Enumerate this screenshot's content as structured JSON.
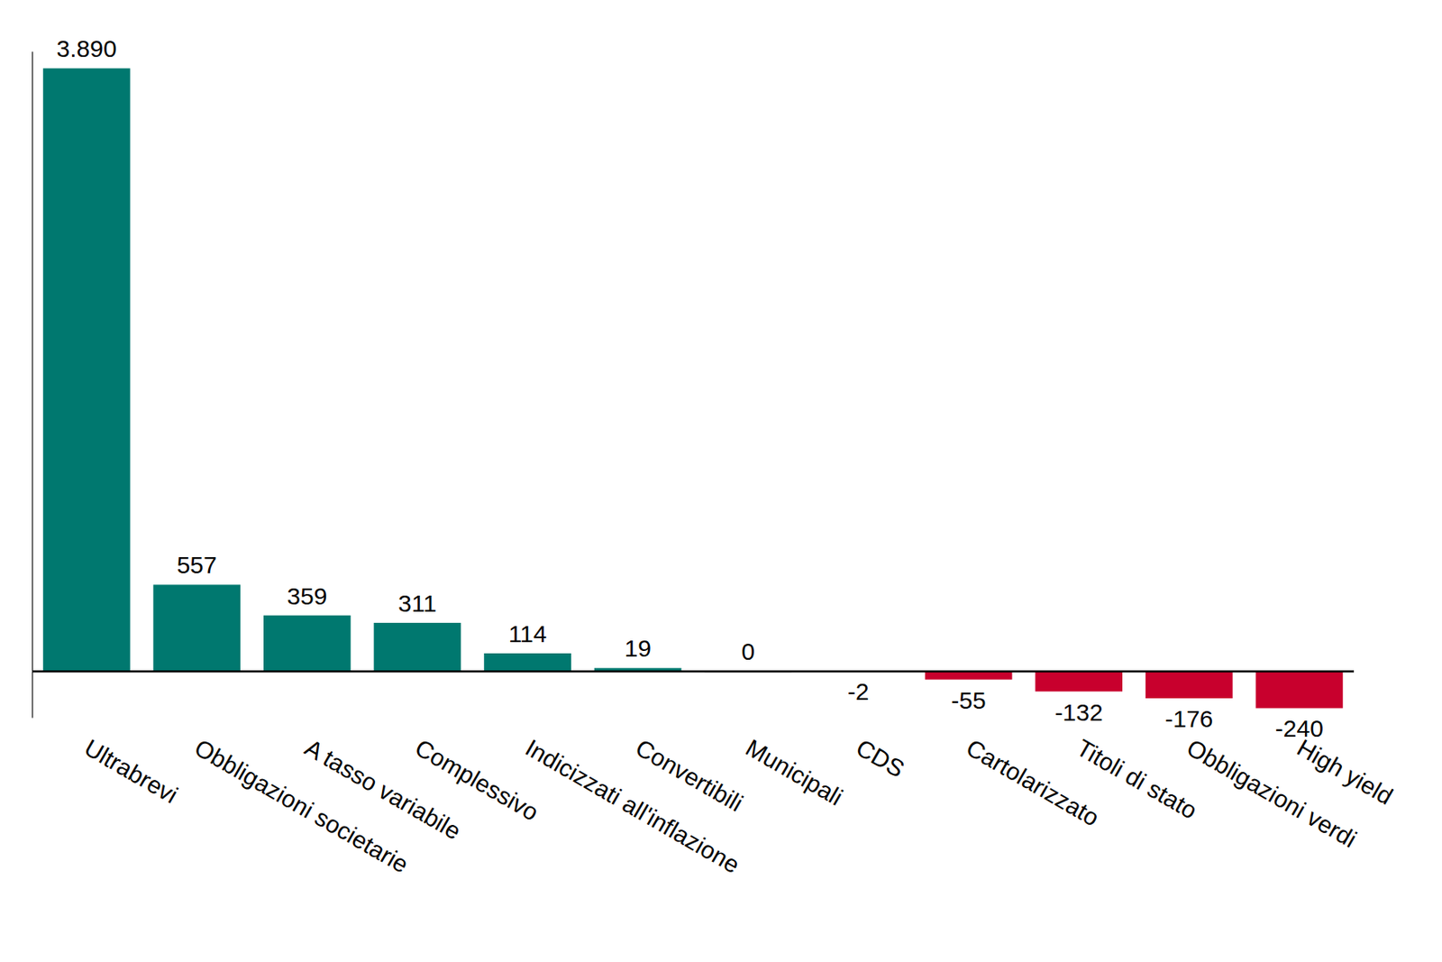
{
  "chart_data": {
    "type": "bar",
    "categories": [
      "Ultrabrevi",
      "Obbligazioni societarie",
      "A tasso variabile",
      "Complessivo",
      "Indicizzati all'inflazione",
      "Convertibili",
      "Municipali",
      "CDS",
      "Cartolarizzato",
      "Titoli di stato",
      "Obbligazioni verdi",
      "High yield"
    ],
    "values": [
      3890,
      557,
      359,
      311,
      114,
      19,
      0,
      -2,
      -55,
      -132,
      -176,
      -240
    ],
    "value_labels": [
      "3.890",
      "557",
      "359",
      "311",
      "114",
      "19",
      "0",
      "-2",
      "-55",
      "-132",
      "-176",
      "-240"
    ],
    "colors": [
      "#00786f",
      "#00786f",
      "#00786f",
      "#00786f",
      "#00786f",
      "#00786f",
      "#9a9a9a",
      "#9a9a9a",
      "#c8002d",
      "#c8002d",
      "#c8002d",
      "#c8002d"
    ],
    "ylim": [
      -300,
      4000
    ],
    "yticks": [
      0
    ],
    "grid": false,
    "data_labels": true,
    "tick_labels": "x"
  }
}
